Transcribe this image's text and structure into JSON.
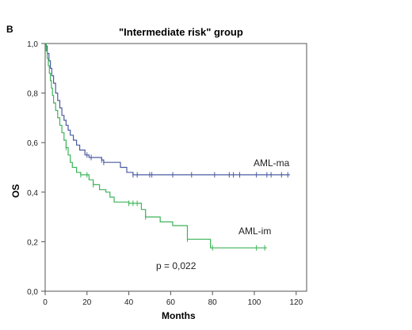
{
  "panel_label": "B",
  "chart_data": {
    "type": "line",
    "subtype": "kaplan-meier",
    "title": "\"Intermediate risk\" group",
    "xlabel": "Months",
    "ylabel": "OS",
    "xlim": [
      0,
      125
    ],
    "ylim": [
      0,
      1
    ],
    "x_ticks": [
      0,
      20,
      40,
      60,
      80,
      100,
      120
    ],
    "y_ticks": [
      0,
      0.2,
      0.4,
      0.6,
      0.8,
      1.0
    ],
    "y_tick_labels": [
      "0,0",
      "0,2",
      "0,4",
      "0,6",
      "0,8",
      "1,0"
    ],
    "grid": false,
    "annotation": "p = 0,022",
    "series": [
      {
        "name": "AML-ma",
        "color": "#4a5ba0",
        "steps": [
          [
            0,
            1.0
          ],
          [
            0.5,
            0.99
          ],
          [
            1,
            0.96
          ],
          [
            1.8,
            0.93
          ],
          [
            2.5,
            0.9
          ],
          [
            3.2,
            0.87
          ],
          [
            4,
            0.84
          ],
          [
            5,
            0.8
          ],
          [
            6,
            0.77
          ],
          [
            7,
            0.74
          ],
          [
            8,
            0.71
          ],
          [
            9,
            0.69
          ],
          [
            10,
            0.67
          ],
          [
            11,
            0.65
          ],
          [
            12,
            0.63
          ],
          [
            13.5,
            0.61
          ],
          [
            15,
            0.59
          ],
          [
            16.5,
            0.57
          ],
          [
            19,
            0.55
          ],
          [
            21,
            0.54
          ],
          [
            27,
            0.53
          ],
          [
            28,
            0.52
          ],
          [
            36,
            0.5
          ],
          [
            39,
            0.48
          ],
          [
            42,
            0.47
          ],
          [
            117,
            0.47
          ]
        ],
        "censored": [
          20,
          22,
          27,
          28,
          42,
          44,
          50,
          51,
          61,
          70,
          81,
          88,
          90,
          93,
          101,
          106,
          108,
          113,
          116
        ]
      },
      {
        "name": "AML-im",
        "color": "#3cb45a",
        "steps": [
          [
            0,
            1.0
          ],
          [
            0.5,
            0.97
          ],
          [
            1,
            0.94
          ],
          [
            1.5,
            0.91
          ],
          [
            2,
            0.88
          ],
          [
            2.5,
            0.85
          ],
          [
            3,
            0.82
          ],
          [
            3.5,
            0.79
          ],
          [
            4,
            0.76
          ],
          [
            5,
            0.73
          ],
          [
            6,
            0.7
          ],
          [
            7,
            0.67
          ],
          [
            8,
            0.64
          ],
          [
            9,
            0.61
          ],
          [
            10,
            0.58
          ],
          [
            11,
            0.55
          ],
          [
            12,
            0.52
          ],
          [
            13,
            0.5
          ],
          [
            15,
            0.48
          ],
          [
            17,
            0.47
          ],
          [
            21,
            0.45
          ],
          [
            23,
            0.43
          ],
          [
            26,
            0.41
          ],
          [
            29,
            0.4
          ],
          [
            31,
            0.38
          ],
          [
            33,
            0.36
          ],
          [
            40,
            0.355
          ],
          [
            46,
            0.33
          ],
          [
            48,
            0.3
          ],
          [
            55,
            0.28
          ],
          [
            61,
            0.265
          ],
          [
            68,
            0.21
          ],
          [
            79,
            0.175
          ],
          [
            106,
            0.175
          ]
        ],
        "censored": [
          10,
          17,
          20,
          23,
          40,
          42,
          44,
          48,
          68,
          80,
          101,
          105
        ]
      }
    ]
  }
}
